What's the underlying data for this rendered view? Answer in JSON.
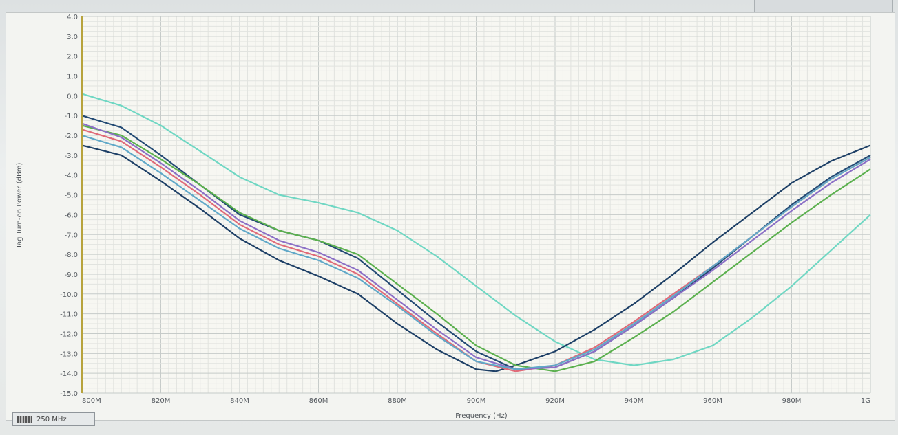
{
  "chart_data": {
    "type": "line",
    "title": "",
    "xlabel": "Frequency (Hz)",
    "ylabel": "Tag Turn-on Power (dBm)",
    "ylim": [
      -15,
      4
    ],
    "xlim": [
      800,
      1000
    ],
    "grid": true,
    "x_ticks": [
      "800M",
      "820M",
      "840M",
      "860M",
      "880M",
      "900M",
      "920M",
      "940M",
      "960M",
      "980M",
      "1G"
    ],
    "y_ticks": [
      "4.0",
      "3.0",
      "2.0",
      "1.0",
      "0.0",
      "-1.0",
      "-2.0",
      "-3.0",
      "-4.0",
      "-5.0",
      "-6.0",
      "-7.0",
      "-8.0",
      "-9.0",
      "-10.0",
      "-11.0",
      "-12.0",
      "-13.0",
      "-14.0",
      "-15.0"
    ],
    "series": [
      {
        "color": "#6fd7c3",
        "x": [
          800,
          810,
          820,
          830,
          840,
          850,
          860,
          870,
          880,
          890,
          900,
          910,
          920,
          930,
          940,
          950,
          960,
          970,
          980,
          990,
          1000
        ],
        "y": [
          0.1,
          -0.5,
          -1.5,
          -2.8,
          -4.1,
          -5.0,
          -5.4,
          -5.9,
          -6.8,
          -8.1,
          -9.6,
          -11.1,
          -12.4,
          -13.3,
          -13.6,
          -13.3,
          -12.6,
          -11.2,
          -9.6,
          -7.8,
          -6.0
        ]
      },
      {
        "color": "#1d3f66",
        "x": [
          800,
          810,
          820,
          830,
          840,
          850,
          860,
          870,
          880,
          890,
          900,
          905,
          910,
          920,
          930,
          940,
          950,
          960,
          970,
          980,
          990,
          1000
        ],
        "y": [
          -2.5,
          -3.0,
          -4.3,
          -5.7,
          -7.2,
          -8.3,
          -9.1,
          -10.0,
          -11.5,
          -12.8,
          -13.8,
          -13.9,
          -13.6,
          -12.9,
          -11.8,
          -10.5,
          -9.0,
          -7.4,
          -5.9,
          -4.4,
          -3.3,
          -2.5
        ]
      },
      {
        "color": "#234a74",
        "x": [
          800,
          810,
          820,
          830,
          840,
          850,
          860,
          870,
          880,
          890,
          900,
          910,
          920,
          930,
          940,
          950,
          960,
          970,
          980,
          990,
          1000
        ],
        "y": [
          -1.0,
          -1.6,
          -3.0,
          -4.5,
          -6.0,
          -6.8,
          -7.3,
          -8.2,
          -9.8,
          -11.4,
          -12.9,
          -13.8,
          -13.7,
          -12.9,
          -11.6,
          -10.2,
          -8.7,
          -7.1,
          -5.5,
          -4.1,
          -3.0
        ]
      },
      {
        "color": "#5bb04e",
        "x": [
          800,
          810,
          820,
          830,
          840,
          850,
          860,
          870,
          880,
          890,
          900,
          910,
          920,
          930,
          940,
          950,
          960,
          970,
          980,
          990,
          1000
        ],
        "y": [
          -1.5,
          -2.0,
          -3.2,
          -4.5,
          -5.9,
          -6.8,
          -7.3,
          -8.0,
          -9.5,
          -11.0,
          -12.6,
          -13.6,
          -13.9,
          -13.4,
          -12.2,
          -10.9,
          -9.4,
          -7.9,
          -6.4,
          -5.0,
          -3.7
        ]
      },
      {
        "color": "#e06a78",
        "x": [
          800,
          810,
          820,
          830,
          840,
          850,
          860,
          870,
          880,
          890,
          900,
          910,
          920,
          930,
          940,
          950,
          960,
          970,
          980,
          990,
          1000
        ],
        "y": [
          -1.7,
          -2.3,
          -3.6,
          -5.0,
          -6.5,
          -7.5,
          -8.1,
          -9.0,
          -10.5,
          -12.0,
          -13.4,
          -13.9,
          -13.6,
          -12.7,
          -11.4,
          -10.0,
          -8.6,
          -7.1,
          -5.6,
          -4.2,
          -3.1
        ]
      },
      {
        "color": "#8b6fc6",
        "x": [
          800,
          810,
          820,
          830,
          840,
          850,
          860,
          870,
          880,
          890,
          900,
          910,
          920,
          930,
          940,
          950,
          960,
          970,
          980,
          990,
          1000
        ],
        "y": [
          -1.4,
          -2.1,
          -3.4,
          -4.8,
          -6.3,
          -7.3,
          -7.9,
          -8.8,
          -10.3,
          -11.8,
          -13.2,
          -13.8,
          -13.7,
          -12.9,
          -11.6,
          -10.2,
          -8.8,
          -7.3,
          -5.8,
          -4.4,
          -3.2
        ]
      },
      {
        "color": "#60a8c8",
        "x": [
          800,
          810,
          820,
          830,
          840,
          850,
          860,
          870,
          880,
          890,
          900,
          910,
          920,
          930,
          940,
          950,
          960,
          970,
          980,
          990,
          1000
        ],
        "y": [
          -2.0,
          -2.6,
          -3.9,
          -5.3,
          -6.7,
          -7.7,
          -8.3,
          -9.2,
          -10.6,
          -12.1,
          -13.4,
          -13.8,
          -13.6,
          -12.8,
          -11.5,
          -10.1,
          -8.6,
          -7.1,
          -5.6,
          -4.2,
          -3.1
        ]
      }
    ]
  },
  "legend": {
    "label": "250 MHz"
  }
}
